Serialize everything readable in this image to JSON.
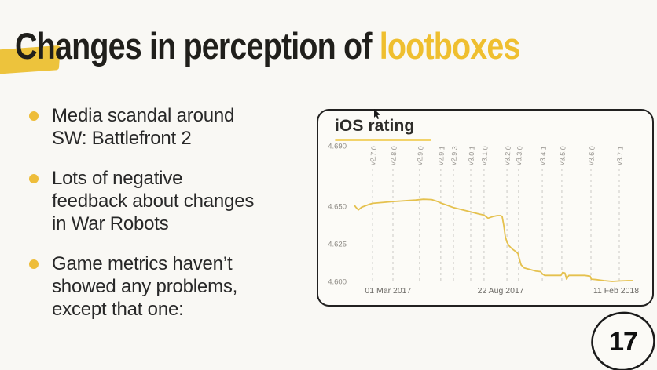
{
  "slide": {
    "title": {
      "prefix": "Changes in perception of ",
      "highlight": "lootboxes"
    },
    "bullets": [
      "Media scandal around\nSW: Battlefront 2",
      "Lots of negative\nfeedback about changes\nin War Robots",
      "Game metrics haven’t\nshowed any problems,\nexcept that one:"
    ],
    "page_number": "17"
  },
  "colors": {
    "background": "#f9f8f4",
    "title_text": "#201f1b",
    "accent_yellow": "#efbf2f",
    "bullet_dot": "#eebd3a",
    "chart_line": "#e5c14e",
    "chart_underline": "#f2d36b",
    "grid_dash": "#cfcec9",
    "version_label": "#9b9893",
    "ytick_label": "#8e8b85",
    "date_label": "#6b6965",
    "card_border": "#222120"
  },
  "chart_data": {
    "type": "line",
    "title": "iOS rating",
    "ylabel": "",
    "xlabel": "",
    "grid": "dashed-vertical",
    "legend": "none",
    "y_ticks": [
      "4.690",
      "4.650",
      "4.625",
      "4.600"
    ],
    "ylim": [
      4.69,
      4.6
    ],
    "x_date_ticks": [
      {
        "label": "01 Mar 2017",
        "pos": 0.133
      },
      {
        "label": "22 Aug 2017",
        "pos": 0.531
      },
      {
        "label": "11 Feb 2018",
        "pos": 0.939
      }
    ],
    "version_markers": [
      {
        "label": "v2.7.0",
        "pos": 0.078
      },
      {
        "label": "v2.8.0",
        "pos": 0.15
      },
      {
        "label": "v2.9.0",
        "pos": 0.244
      },
      {
        "label": "v2.9.1",
        "pos": 0.319
      },
      {
        "label": "v2.9.3",
        "pos": 0.364
      },
      {
        "label": "v3.0.1",
        "pos": 0.425
      },
      {
        "label": "v3.1.0",
        "pos": 0.472
      },
      {
        "label": "v3.2.0",
        "pos": 0.553
      },
      {
        "label": "v3.3.0",
        "pos": 0.594
      },
      {
        "label": "v3.4.1",
        "pos": 0.678
      },
      {
        "label": "v3.5.0",
        "pos": 0.747
      },
      {
        "label": "v3.6.0",
        "pos": 0.85
      },
      {
        "label": "v3.7.1",
        "pos": 0.95
      }
    ],
    "series": [
      {
        "name": "iOS rating",
        "points": [
          [
            0.014,
            4.6505
          ],
          [
            0.02,
            4.649
          ],
          [
            0.028,
            4.6475
          ],
          [
            0.039,
            4.6492
          ],
          [
            0.05,
            4.65
          ],
          [
            0.069,
            4.6513
          ],
          [
            0.078,
            4.6518
          ],
          [
            0.119,
            4.6525
          ],
          [
            0.15,
            4.653
          ],
          [
            0.19,
            4.6535
          ],
          [
            0.23,
            4.654
          ],
          [
            0.258,
            4.6545
          ],
          [
            0.287,
            4.6543
          ],
          [
            0.308,
            4.653
          ],
          [
            0.319,
            4.652
          ],
          [
            0.342,
            4.6505
          ],
          [
            0.364,
            4.649
          ],
          [
            0.397,
            4.6475
          ],
          [
            0.425,
            4.6462
          ],
          [
            0.453,
            4.6448
          ],
          [
            0.472,
            4.644
          ],
          [
            0.486,
            4.642
          ],
          [
            0.503,
            4.643
          ],
          [
            0.519,
            4.6437
          ],
          [
            0.531,
            4.6437
          ],
          [
            0.536,
            4.643
          ],
          [
            0.542,
            4.637
          ],
          [
            0.547,
            4.63
          ],
          [
            0.553,
            4.626
          ],
          [
            0.561,
            4.6235
          ],
          [
            0.572,
            4.6215
          ],
          [
            0.583,
            4.62
          ],
          [
            0.592,
            4.6185
          ],
          [
            0.597,
            4.615
          ],
          [
            0.603,
            4.611
          ],
          [
            0.614,
            4.609
          ],
          [
            0.633,
            4.608
          ],
          [
            0.656,
            4.6068
          ],
          [
            0.672,
            4.6065
          ],
          [
            0.678,
            4.605
          ],
          [
            0.686,
            4.604
          ],
          [
            0.744,
            4.604
          ],
          [
            0.75,
            4.606
          ],
          [
            0.758,
            4.6055
          ],
          [
            0.764,
            4.6015
          ],
          [
            0.772,
            4.604
          ],
          [
            0.828,
            4.604
          ],
          [
            0.847,
            4.6035
          ],
          [
            0.851,
            4.6015
          ],
          [
            0.869,
            4.6012
          ],
          [
            0.897,
            4.6005
          ],
          [
            0.925,
            4.6
          ],
          [
            0.953,
            4.6003
          ],
          [
            0.981,
            4.6005
          ],
          [
            0.997,
            4.6005
          ]
        ]
      }
    ]
  }
}
